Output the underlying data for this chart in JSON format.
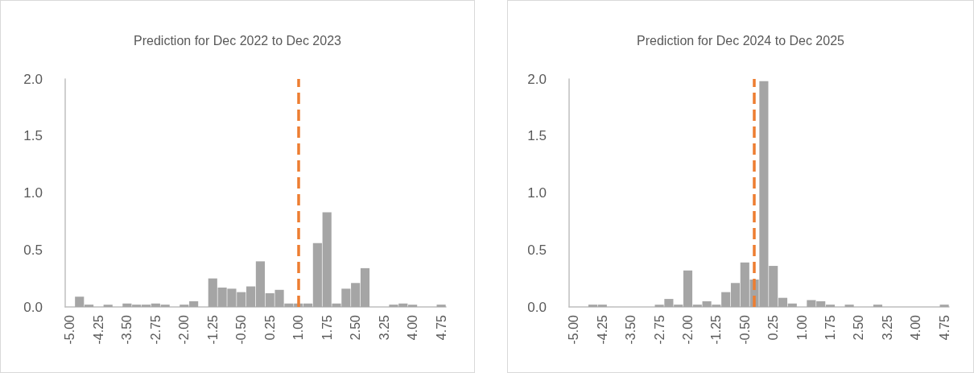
{
  "chart_data": [
    {
      "type": "bar",
      "title": "Prediction for Dec 2022 to Dec 2023",
      "x": [
        -5,
        -4.75,
        -4.5,
        -4.25,
        -4,
        -3.75,
        -3.5,
        -3.25,
        -3,
        -2.75,
        -2.5,
        -2.25,
        -2,
        -1.75,
        -1.5,
        -1.25,
        -1,
        -0.75,
        -0.5,
        -0.25,
        0,
        0.25,
        0.5,
        0.75,
        1,
        1.25,
        1.5,
        1.75,
        2,
        2.25,
        2.5,
        2.75,
        3,
        3.25,
        3.5,
        3.75,
        4,
        4.25,
        4.5,
        4.75
      ],
      "values": [
        0,
        0.09,
        0.02,
        0,
        0.02,
        0,
        0.03,
        0.02,
        0.02,
        0.03,
        0.02,
        0,
        0.02,
        0.05,
        0,
        0.25,
        0.17,
        0.16,
        0.13,
        0.18,
        0.4,
        0.12,
        0.15,
        0.03,
        0.03,
        0.03,
        0.56,
        0.83,
        0.03,
        0.16,
        0.21,
        0.34,
        0,
        0,
        0.02,
        0.03,
        0.02,
        0,
        0,
        0.02
      ],
      "color": "#a5a5a5",
      "xlim": [
        -5.125,
        4.875
      ],
      "xticks": [
        {
          "value": -5,
          "label": "-5.00"
        },
        {
          "value": -4.25,
          "label": "-4.25"
        },
        {
          "value": -3.5,
          "label": "-3.50"
        },
        {
          "value": -2.75,
          "label": "-2.75"
        },
        {
          "value": -2,
          "label": "-2.00"
        },
        {
          "value": -1.25,
          "label": "-1.25"
        },
        {
          "value": -0.5,
          "label": "-0.50"
        },
        {
          "value": 0.25,
          "label": "0.25"
        },
        {
          "value": 1,
          "label": "1.00"
        },
        {
          "value": 1.75,
          "label": "1.75"
        },
        {
          "value": 2.5,
          "label": "2.50"
        },
        {
          "value": 3.25,
          "label": "3.25"
        },
        {
          "value": 4,
          "label": "4.00"
        },
        {
          "value": 4.75,
          "label": "4.75"
        }
      ],
      "ylim": [
        0,
        2
      ],
      "yticks": [
        {
          "value": 0,
          "label": "0.0"
        },
        {
          "value": 0.5,
          "label": "0.5"
        },
        {
          "value": 1,
          "label": "1.0"
        },
        {
          "value": 1.5,
          "label": "1.5"
        },
        {
          "value": 2,
          "label": "2.0"
        }
      ],
      "grid": false,
      "ref_lines": [
        {
          "axis": "x",
          "value": 1,
          "color": "#ed7d31",
          "line_style": "dashed"
        }
      ]
    },
    {
      "type": "bar",
      "title": "Prediction for Dec 2024 to Dec 2025",
      "x": [
        -5,
        -4.75,
        -4.5,
        -4.25,
        -4,
        -3.75,
        -3.5,
        -3.25,
        -3,
        -2.75,
        -2.5,
        -2.25,
        -2,
        -1.75,
        -1.5,
        -1.25,
        -1,
        -0.75,
        -0.5,
        -0.25,
        0,
        0.25,
        0.5,
        0.75,
        1,
        1.25,
        1.5,
        1.75,
        2,
        2.25,
        2.5,
        2.75,
        3,
        3.25,
        3.5,
        3.75,
        4,
        4.25,
        4.5,
        4.75
      ],
      "values": [
        0,
        0,
        0.02,
        0.02,
        0,
        0,
        0,
        0,
        0,
        0.02,
        0.07,
        0.02,
        0.32,
        0.02,
        0.05,
        0.02,
        0.13,
        0.21,
        0.39,
        0.24,
        1.98,
        0.36,
        0.08,
        0.03,
        0,
        0.06,
        0.05,
        0.02,
        0,
        0.02,
        0,
        0,
        0.02,
        0,
        0,
        0,
        0,
        0,
        0,
        0.02
      ],
      "color": "#a5a5a5",
      "xlim": [
        -5.125,
        4.875
      ],
      "xticks": [
        {
          "value": -5,
          "label": "-5.00"
        },
        {
          "value": -4.25,
          "label": "-4.25"
        },
        {
          "value": -3.5,
          "label": "-3.50"
        },
        {
          "value": -2.75,
          "label": "-2.75"
        },
        {
          "value": -2,
          "label": "-2.00"
        },
        {
          "value": -1.25,
          "label": "-1.25"
        },
        {
          "value": -0.5,
          "label": "-0.50"
        },
        {
          "value": 0.25,
          "label": "0.25"
        },
        {
          "value": 1,
          "label": "1.00"
        },
        {
          "value": 1.75,
          "label": "1.75"
        },
        {
          "value": 2.5,
          "label": "2.50"
        },
        {
          "value": 3.25,
          "label": "3.25"
        },
        {
          "value": 4,
          "label": "4.00"
        },
        {
          "value": 4.75,
          "label": "4.75"
        }
      ],
      "ylim": [
        0,
        2
      ],
      "yticks": [
        {
          "value": 0,
          "label": "0.0"
        },
        {
          "value": 0.5,
          "label": "0.5"
        },
        {
          "value": 1,
          "label": "1.0"
        },
        {
          "value": 1.5,
          "label": "1.5"
        },
        {
          "value": 2,
          "label": "2.0"
        }
      ],
      "grid": false,
      "ref_lines": [
        {
          "axis": "x",
          "value": -0.25,
          "color": "#ed7d31",
          "line_style": "dashed"
        }
      ]
    }
  ]
}
